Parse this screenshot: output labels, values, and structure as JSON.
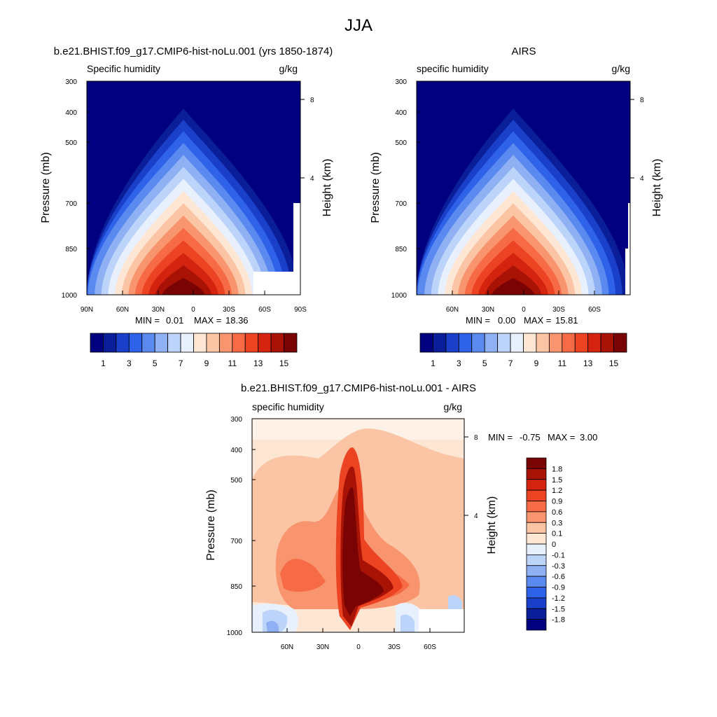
{
  "page_title": "JJA",
  "cbar_colors_model": [
    "#000080",
    "#0a1e9a",
    "#1a3fc8",
    "#2e62e8",
    "#5a8af0",
    "#8fb1f4",
    "#bcd3fa",
    "#e8f0fd",
    "#fde6d4",
    "#fbc4a4",
    "#f8956e",
    "#f66a46",
    "#ec4422",
    "#d4230e",
    "#a81306",
    "#7a0403"
  ],
  "cbar_colors_diff": [
    "#000080",
    "#0a1e9a",
    "#1a3fc8",
    "#2e62e8",
    "#5a8af0",
    "#8fb1f4",
    "#bcd3fa",
    "#e8f0fd",
    "#fde6d4",
    "#fbc4a4",
    "#f8956e",
    "#f66a46",
    "#ec4422",
    "#d4230e",
    "#a81306",
    "#7a0403"
  ],
  "chart_data": [
    {
      "type": "heatmap",
      "title": "b.e21.BHIST.f09_g17.CMIP6-hist-noLu.001 (yrs 1850-1874)",
      "left_label": "Specific humidity",
      "right_label": "g/kg",
      "ylabel": "Pressure (mb)",
      "ylabel_right": "Height (km)",
      "y_ticks": [
        "300",
        "400",
        "500",
        "700",
        "850",
        "1000"
      ],
      "y_right_ticks": [
        "8",
        "4"
      ],
      "x_ticks": [
        "90N",
        "60N",
        "30N",
        "0",
        "30S",
        "60S",
        "90S"
      ],
      "y_scale": "log",
      "min_label": "MIN = ",
      "min_value": "0.01",
      "max_label": "MAX = ",
      "max_value": "18.36",
      "colorbar_labels": [
        "1",
        "3",
        "5",
        "7",
        "9",
        "11",
        "13",
        "15"
      ],
      "peak_value": 18.36
    },
    {
      "type": "heatmap",
      "title": "AIRS",
      "left_label": "specific humidity",
      "right_label": "g/kg",
      "ylabel": "Pressure (mb)",
      "ylabel_right": "Height (km)",
      "y_ticks": [
        "300",
        "400",
        "500",
        "700",
        "850",
        "1000"
      ],
      "y_right_ticks": [
        "8",
        "4"
      ],
      "x_ticks": [
        "60N",
        "30N",
        "0",
        "30S",
        "60S"
      ],
      "y_scale": "log",
      "min_label": "MIN = ",
      "min_value": "0.00",
      "max_label": "MAX = ",
      "max_value": "15.81",
      "colorbar_labels": [
        "1",
        "3",
        "5",
        "7",
        "9",
        "11",
        "13",
        "15"
      ],
      "peak_value": 15.81
    },
    {
      "type": "heatmap",
      "title": "b.e21.BHIST.f09_g17.CMIP6-hist-noLu.001 - AIRS",
      "left_label": "specific humidity",
      "right_label": "g/kg",
      "ylabel": "Pressure (mb)",
      "ylabel_right": "Height (km)",
      "y_ticks": [
        "300",
        "400",
        "500",
        "700",
        "850",
        "1000"
      ],
      "y_right_ticks": [
        "8",
        "4"
      ],
      "x_ticks": [
        "60N",
        "30N",
        "0",
        "30S",
        "60S"
      ],
      "y_scale": "log",
      "min_label": "MIN = ",
      "min_value": "-0.75",
      "max_label": "MAX = ",
      "max_value": "3.00",
      "colorbar_labels": [
        "1.8",
        "1.5",
        "1.2",
        "0.9",
        "0.6",
        "0.3",
        "0.1",
        "0",
        "-0.1",
        "-0.3",
        "-0.6",
        "-0.9",
        "-1.2",
        "-1.5",
        "-1.8"
      ]
    }
  ]
}
